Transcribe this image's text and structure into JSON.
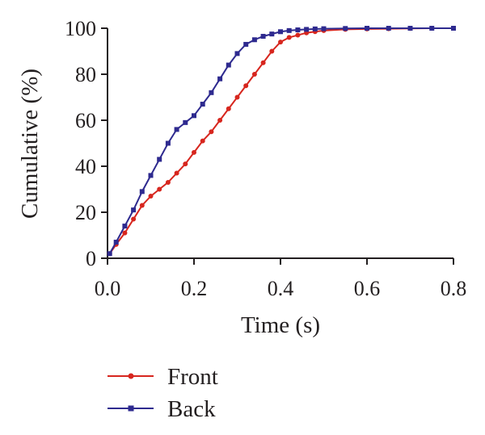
{
  "chart_data": {
    "type": "line",
    "title": "",
    "xlabel": "Time (s)",
    "ylabel": "Cumulative (%)",
    "xlim": [
      0,
      0.8
    ],
    "ylim": [
      0,
      100
    ],
    "xticks": [
      "0.0",
      "0.2",
      "0.4",
      "0.6",
      "0.8"
    ],
    "yticks": [
      "0",
      "20",
      "40",
      "60",
      "80",
      "100"
    ],
    "grid": false,
    "legend_position": "bottom",
    "series": [
      {
        "name": "Front",
        "color": "#d7261e",
        "marker": "circle",
        "x": [
          0.005,
          0.02,
          0.04,
          0.06,
          0.08,
          0.1,
          0.12,
          0.14,
          0.16,
          0.18,
          0.2,
          0.22,
          0.24,
          0.26,
          0.28,
          0.3,
          0.32,
          0.34,
          0.36,
          0.38,
          0.4,
          0.42,
          0.44,
          0.46,
          0.48,
          0.5,
          0.55,
          0.6,
          0.65,
          0.7,
          0.75,
          0.8
        ],
        "y": [
          2,
          6,
          11,
          17,
          23,
          27,
          30,
          33,
          37,
          41,
          46,
          51,
          55,
          60,
          65,
          70,
          75,
          80,
          85,
          90,
          94,
          96,
          97,
          98,
          98.5,
          99,
          99.5,
          99.7,
          99.8,
          99.9,
          100,
          100
        ]
      },
      {
        "name": "Back",
        "color": "#2e2a8f",
        "marker": "square",
        "x": [
          0.005,
          0.02,
          0.04,
          0.06,
          0.08,
          0.1,
          0.12,
          0.14,
          0.16,
          0.18,
          0.2,
          0.22,
          0.24,
          0.26,
          0.28,
          0.3,
          0.32,
          0.34,
          0.36,
          0.38,
          0.4,
          0.42,
          0.44,
          0.46,
          0.48,
          0.5,
          0.55,
          0.6,
          0.65,
          0.7,
          0.75,
          0.8
        ],
        "y": [
          2,
          7,
          14,
          21,
          29,
          36,
          43,
          50,
          56,
          59,
          62,
          67,
          72,
          78,
          84,
          89,
          93,
          95,
          96.5,
          97.5,
          98.5,
          99,
          99.3,
          99.5,
          99.7,
          99.8,
          99.9,
          100,
          100,
          100,
          100,
          100
        ]
      }
    ]
  }
}
